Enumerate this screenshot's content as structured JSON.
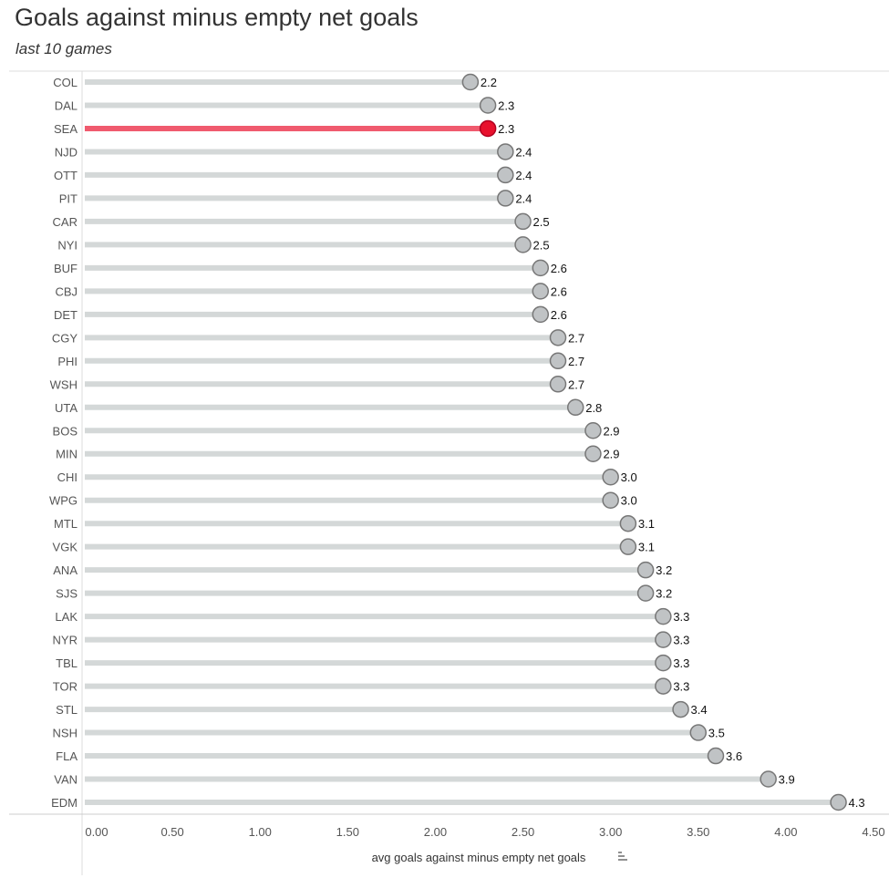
{
  "chart_data": {
    "type": "lollipop",
    "title": "Goals against minus empty net goals",
    "subtitle": "last 10 games",
    "xlabel": "avg goals against minus empty net goals",
    "sort_icon": "sort-descending-icon",
    "xlim": [
      0,
      4.5
    ],
    "xticks": [
      "0.00",
      "0.50",
      "1.00",
      "1.50",
      "2.00",
      "2.50",
      "3.00",
      "3.50",
      "4.00",
      "4.50"
    ],
    "highlight": "SEA",
    "colors": {
      "bar": "#d4d8d8",
      "dot": "#c0c3c5",
      "highlight_bar": "#f05a6e",
      "highlight_dot": "#e8112d"
    },
    "categories": [
      "COL",
      "DAL",
      "SEA",
      "NJD",
      "OTT",
      "PIT",
      "CAR",
      "NYI",
      "BUF",
      "CBJ",
      "DET",
      "CGY",
      "PHI",
      "WSH",
      "UTA",
      "BOS",
      "MIN",
      "CHI",
      "WPG",
      "MTL",
      "VGK",
      "ANA",
      "SJS",
      "LAK",
      "NYR",
      "TBL",
      "TOR",
      "STL",
      "NSH",
      "FLA",
      "VAN",
      "EDM"
    ],
    "values": [
      2.2,
      2.3,
      2.3,
      2.4,
      2.4,
      2.4,
      2.5,
      2.5,
      2.6,
      2.6,
      2.6,
      2.7,
      2.7,
      2.7,
      2.8,
      2.9,
      2.9,
      3.0,
      3.0,
      3.1,
      3.1,
      3.2,
      3.2,
      3.3,
      3.3,
      3.3,
      3.3,
      3.4,
      3.5,
      3.6,
      3.9,
      4.3
    ]
  }
}
